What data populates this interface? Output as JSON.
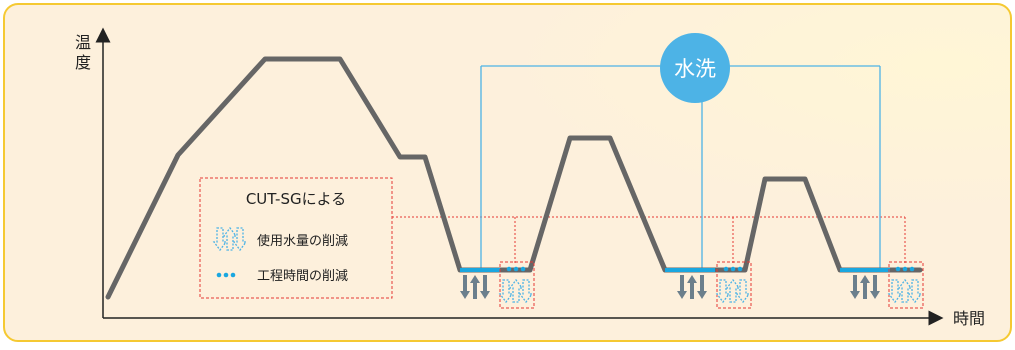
{
  "axes": {
    "y_label_line1": "温",
    "y_label_line2": "度",
    "x_label": "時間"
  },
  "wash_badge": {
    "label": "水洗"
  },
  "legend": {
    "title": "CUT-SGによる",
    "items": [
      {
        "icon": "water-reduction-arrows-icon",
        "label": "使用水量の削減"
      },
      {
        "icon": "three-dots-icon",
        "label": "工程時間の削減"
      }
    ]
  },
  "colors": {
    "panel_fill": "#fdf0dc",
    "panel_border": "#f5c932",
    "curve": "#666666",
    "wash_blue": "#4db3e6",
    "cyan_segment": "#1aa7e0",
    "legend_border": "#e53935",
    "arrow_grey": "#6b7f8c"
  }
}
